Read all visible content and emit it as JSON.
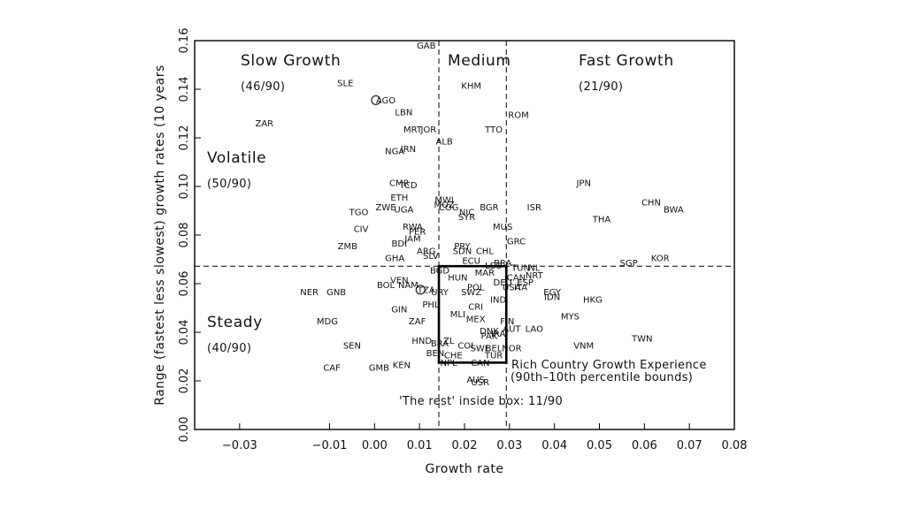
{
  "chart_data": {
    "type": "scatter",
    "xlabel": "Growth rate",
    "ylabel": "Range (fastest less slowest) growth rates (10 years",
    "xlim": [
      -0.04,
      0.08
    ],
    "ylim": [
      0.0,
      0.16
    ],
    "x_ticks": [
      "−0.03",
      "−0.01",
      "0.00",
      "0.01",
      "0.02",
      "0.03",
      "0.04",
      "0.05",
      "0.06",
      "0.07",
      "0.08"
    ],
    "x_tick_values": [
      -0.03,
      -0.01,
      0.0,
      0.01,
      0.02,
      0.03,
      0.04,
      0.05,
      0.06,
      0.07,
      0.08
    ],
    "y_ticks": [
      "0.00",
      "0.02",
      "0.04",
      "0.06",
      "0.08",
      "0.10",
      "0.12",
      "0.14",
      "0.16"
    ],
    "y_tick_values": [
      0.0,
      0.02,
      0.04,
      0.06,
      0.08,
      0.1,
      0.12,
      0.14,
      0.16
    ],
    "grid": false,
    "dividers": {
      "x": [
        0.0143,
        0.0293
      ],
      "y": 0.0672
    },
    "box": {
      "x": [
        0.0143,
        0.0293
      ],
      "y": [
        0.0275,
        0.0672
      ]
    },
    "points": [
      {
        "label": "GAB",
        "x": 0.0115,
        "y": 0.158
      },
      {
        "label": "SLE",
        "x": -0.0065,
        "y": 0.1425
      },
      {
        "label": "KHM",
        "x": 0.0215,
        "y": 0.1415
      },
      {
        "label": "AGO",
        "x": 0.0025,
        "y": 0.1355
      },
      {
        "label": "LBN",
        "x": 0.0065,
        "y": 0.1305
      },
      {
        "label": "ROM",
        "x": 0.032,
        "y": 0.1295
      },
      {
        "label": "ZAR",
        "x": -0.0245,
        "y": 0.126
      },
      {
        "label": "MRT",
        "x": 0.0085,
        "y": 0.1235
      },
      {
        "label": "JOR",
        "x": 0.012,
        "y": 0.1235
      },
      {
        "label": "TTO",
        "x": 0.0265,
        "y": 0.1235
      },
      {
        "label": "ALB",
        "x": 0.0155,
        "y": 0.1185
      },
      {
        "label": "NGA",
        "x": 0.0045,
        "y": 0.1145
      },
      {
        "label": "IRN",
        "x": 0.0075,
        "y": 0.1155
      },
      {
        "label": "CMR",
        "x": 0.0055,
        "y": 0.1015
      },
      {
        "label": "TCD",
        "x": 0.0075,
        "y": 0.1005
      },
      {
        "label": "JPN",
        "x": 0.0465,
        "y": 0.1015
      },
      {
        "label": "ETH",
        "x": 0.0055,
        "y": 0.0955
      },
      {
        "label": "MWI",
        "x": 0.0155,
        "y": 0.0945
      },
      {
        "label": "MOZ",
        "x": 0.0155,
        "y": 0.0925
      },
      {
        "label": "ZWE",
        "x": 0.0025,
        "y": 0.0915
      },
      {
        "label": "UGA",
        "x": 0.0065,
        "y": 0.0905
      },
      {
        "label": "COG",
        "x": 0.0165,
        "y": 0.0915
      },
      {
        "label": "BGR",
        "x": 0.0255,
        "y": 0.0915
      },
      {
        "label": "ISR",
        "x": 0.0355,
        "y": 0.0915
      },
      {
        "label": "CHN",
        "x": 0.0615,
        "y": 0.0935
      },
      {
        "label": "BWA",
        "x": 0.0665,
        "y": 0.0905
      },
      {
        "label": "TGO",
        "x": -0.0035,
        "y": 0.0895
      },
      {
        "label": "NIC",
        "x": 0.0205,
        "y": 0.0895
      },
      {
        "label": "SYR",
        "x": 0.0205,
        "y": 0.0875
      },
      {
        "label": "THA",
        "x": 0.0505,
        "y": 0.0865
      },
      {
        "label": "RWA",
        "x": 0.0085,
        "y": 0.0835
      },
      {
        "label": "MUS",
        "x": 0.0285,
        "y": 0.0835
      },
      {
        "label": "CIV",
        "x": -0.003,
        "y": 0.0825
      },
      {
        "label": "PER",
        "x": 0.0095,
        "y": 0.0815
      },
      {
        "label": "JAM",
        "x": 0.0085,
        "y": 0.0785
      },
      {
        "label": "GRC",
        "x": 0.0315,
        "y": 0.0775
      },
      {
        "label": "ZMB",
        "x": -0.006,
        "y": 0.0755
      },
      {
        "label": "BDI",
        "x": 0.0055,
        "y": 0.0765
      },
      {
        "label": "PRY",
        "x": 0.0195,
        "y": 0.0755
      },
      {
        "label": "ARG",
        "x": 0.0115,
        "y": 0.0735
      },
      {
        "label": "SDN",
        "x": 0.0195,
        "y": 0.0735
      },
      {
        "label": "CHL",
        "x": 0.0245,
        "y": 0.0735
      },
      {
        "label": "SLV",
        "x": 0.0125,
        "y": 0.0715
      },
      {
        "label": "GHA",
        "x": 0.0045,
        "y": 0.0705
      },
      {
        "label": "ECU",
        "x": 0.0215,
        "y": 0.0695
      },
      {
        "label": "KOR",
        "x": 0.0635,
        "y": 0.0705
      },
      {
        "label": "BRA",
        "x": 0.0285,
        "y": 0.0685
      },
      {
        "label": "LSO",
        "x": 0.0265,
        "y": 0.0675
      },
      {
        "label": "SGP",
        "x": 0.0565,
        "y": 0.0685
      },
      {
        "label": "TUN",
        "x": 0.0325,
        "y": 0.0665
      },
      {
        "label": "NL",
        "x": 0.0355,
        "y": 0.0665
      },
      {
        "label": "BGD",
        "x": 0.0145,
        "y": 0.0655
      },
      {
        "label": "MAR",
        "x": 0.0245,
        "y": 0.0645
      },
      {
        "label": "HUN",
        "x": 0.0185,
        "y": 0.0625
      },
      {
        "label": "CAN",
        "x": 0.0315,
        "y": 0.0625
      },
      {
        "label": "NRT",
        "x": 0.0355,
        "y": 0.0635
      },
      {
        "label": "VEN",
        "x": 0.0055,
        "y": 0.0615
      },
      {
        "label": "DEU",
        "x": 0.0285,
        "y": 0.0605
      },
      {
        "label": "ESP",
        "x": 0.0335,
        "y": 0.0605
      },
      {
        "label": "BOL",
        "x": 0.0025,
        "y": 0.0595
      },
      {
        "label": "NAM",
        "x": 0.0075,
        "y": 0.0595
      },
      {
        "label": "POL",
        "x": 0.0225,
        "y": 0.0585
      },
      {
        "label": "USA",
        "x": 0.0305,
        "y": 0.0585
      },
      {
        "label": "ITA",
        "x": 0.0325,
        "y": 0.0585
      },
      {
        "label": "TZA",
        "x": 0.0115,
        "y": 0.0575
      },
      {
        "label": "URY",
        "x": 0.0145,
        "y": 0.0565
      },
      {
        "label": "SWZ",
        "x": 0.0215,
        "y": 0.0565
      },
      {
        "label": "EGY",
        "x": 0.0395,
        "y": 0.0565
      },
      {
        "label": "IDN",
        "x": 0.0395,
        "y": 0.0545
      },
      {
        "label": "NER",
        "x": -0.0145,
        "y": 0.0565
      },
      {
        "label": "GNB",
        "x": -0.0085,
        "y": 0.0565
      },
      {
        "label": "IND",
        "x": 0.0275,
        "y": 0.0535
      },
      {
        "label": "HKG",
        "x": 0.0485,
        "y": 0.0535
      },
      {
        "label": "PHL",
        "x": 0.0125,
        "y": 0.0515
      },
      {
        "label": "CRI",
        "x": 0.0225,
        "y": 0.0505
      },
      {
        "label": "GIN",
        "x": 0.0055,
        "y": 0.0495
      },
      {
        "label": "MLI",
        "x": 0.0185,
        "y": 0.0475
      },
      {
        "label": "MEX",
        "x": 0.0225,
        "y": 0.0455
      },
      {
        "label": "MYS",
        "x": 0.0435,
        "y": 0.0465
      },
      {
        "label": "MDG",
        "x": -0.0105,
        "y": 0.0445
      },
      {
        "label": "ZAF",
        "x": 0.0095,
        "y": 0.0445
      },
      {
        "label": "FIN",
        "x": 0.0295,
        "y": 0.0445
      },
      {
        "label": "AUT",
        "x": 0.0305,
        "y": 0.0415
      },
      {
        "label": "LAO",
        "x": 0.0355,
        "y": 0.0415
      },
      {
        "label": "DNK",
        "x": 0.0255,
        "y": 0.0405
      },
      {
        "label": "PAK",
        "x": 0.0255,
        "y": 0.0385
      },
      {
        "label": "IRA",
        "x": 0.0275,
        "y": 0.0395
      },
      {
        "label": "TWN",
        "x": 0.0595,
        "y": 0.0375
      },
      {
        "label": "HND",
        "x": 0.0105,
        "y": 0.0365
      },
      {
        "label": "BRA",
        "x": 0.0145,
        "y": 0.0355
      },
      {
        "label": "ZL",
        "x": 0.0165,
        "y": 0.0365
      },
      {
        "label": "COL",
        "x": 0.0205,
        "y": 0.0345
      },
      {
        "label": "SWE",
        "x": 0.0235,
        "y": 0.0335
      },
      {
        "label": "BEL",
        "x": 0.0265,
        "y": 0.0335
      },
      {
        "label": "NOR",
        "x": 0.0305,
        "y": 0.0335
      },
      {
        "label": "SEN",
        "x": -0.005,
        "y": 0.0345
      },
      {
        "label": "VNM",
        "x": 0.0465,
        "y": 0.0345
      },
      {
        "label": "BEN",
        "x": 0.0135,
        "y": 0.0315
      },
      {
        "label": "CHE",
        "x": 0.0175,
        "y": 0.0305
      },
      {
        "label": "TUR",
        "x": 0.0265,
        "y": 0.0305
      },
      {
        "label": "CAF",
        "x": -0.0095,
        "y": 0.0255
      },
      {
        "label": "GMB",
        "x": 0.001,
        "y": 0.0255
      },
      {
        "label": "KEN",
        "x": 0.006,
        "y": 0.0265
      },
      {
        "label": "NPL",
        "x": 0.0165,
        "y": 0.0275
      },
      {
        "label": "CAN",
        "x": 0.0235,
        "y": 0.0275
      },
      {
        "label": "AUS",
        "x": 0.0225,
        "y": 0.0205
      },
      {
        "label": "USR",
        "x": 0.0235,
        "y": 0.0195
      }
    ],
    "circle_markers": [
      {
        "x": 0.0003,
        "y": 0.1355
      },
      {
        "x": 0.0102,
        "y": 0.0575
      }
    ],
    "annotations": {
      "slow_growth": "Slow Growth",
      "slow_growth_count": "(46/90)",
      "medium": "Medium",
      "fast_growth": "Fast Growth",
      "fast_growth_count": "(21/90)",
      "volatile": "Volatile",
      "volatile_count": "(50/90)",
      "steady": "Steady",
      "steady_count": "(40/90)",
      "rich_line1": "Rich Country Growth Experience",
      "rich_line2": "(90th–10th percentile bounds)",
      "rest_note": "'The rest' inside box: 11/90"
    }
  }
}
